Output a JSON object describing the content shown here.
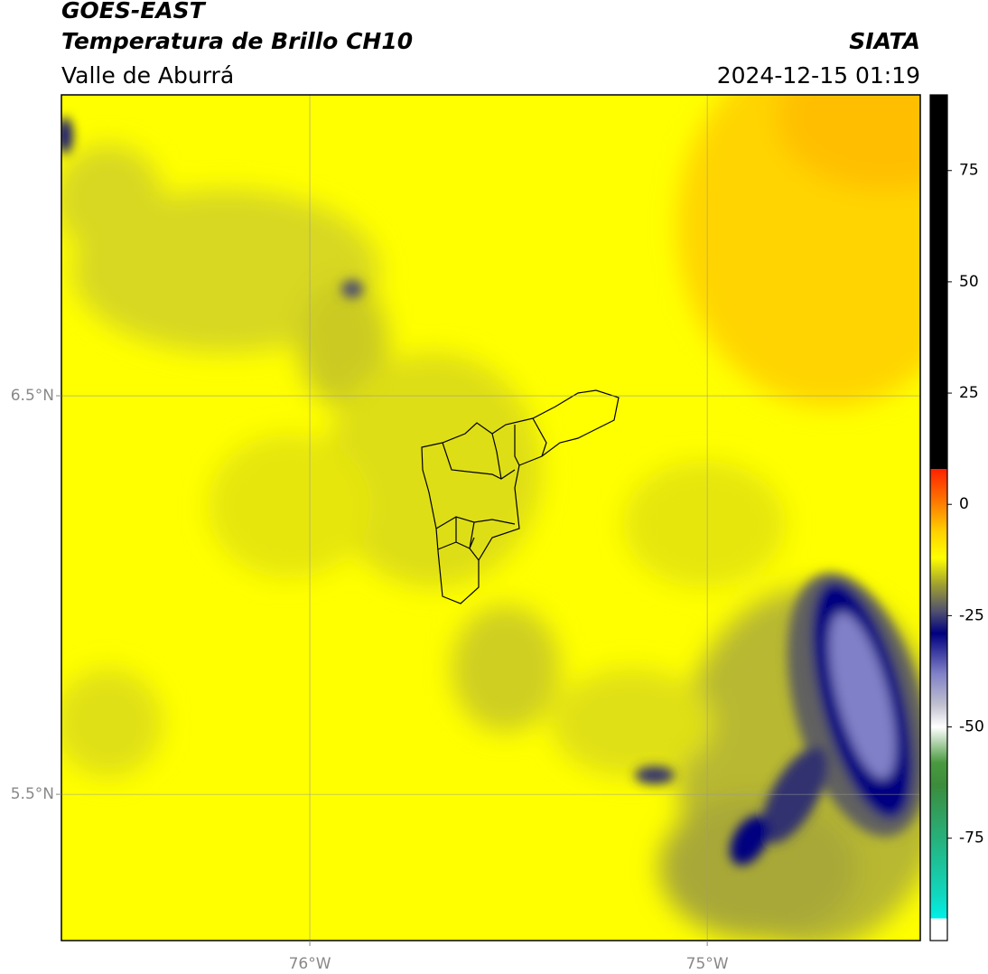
{
  "header": {
    "satellite": "GOES-EAST",
    "product": "Temperatura de Brillo CH10",
    "region": "Valle de Aburrá",
    "agency": "SIATA",
    "datetime": "2024-12-15 01:19"
  },
  "map": {
    "xlim": [
      -76.625,
      -74.464
    ],
    "ylim": [
      5.133,
      7.255
    ],
    "xticks": [
      {
        "value": -76,
        "label": "76°W"
      },
      {
        "value": -75,
        "label": "75°W"
      }
    ],
    "yticks": [
      {
        "value": 6.5,
        "label": "6.5°N"
      },
      {
        "value": 5.5,
        "label": "5.5°N"
      }
    ],
    "grid": true
  },
  "colorbar": {
    "lim": [
      -98,
      92
    ],
    "ticks": [
      75,
      50,
      25,
      0,
      -25,
      -50,
      -75
    ],
    "stops": [
      {
        "value": -98,
        "color": "#ffffff"
      },
      {
        "value": -93,
        "color": "#ffffff"
      },
      {
        "value": -93,
        "color": "#00f0e8"
      },
      {
        "value": -88,
        "color": "#10d8c0"
      },
      {
        "value": -63,
        "color": "#3c8c3c"
      },
      {
        "value": -58,
        "color": "#4a9a40"
      },
      {
        "value": -50,
        "color": "#ffffff"
      },
      {
        "value": -45,
        "color": "#c0c0d0"
      },
      {
        "value": -38,
        "color": "#8080c8"
      },
      {
        "value": -29,
        "color": "#000080"
      },
      {
        "value": -24,
        "color": "#505070"
      },
      {
        "value": -18,
        "color": "#a0a030"
      },
      {
        "value": -12,
        "color": "#ffff00"
      },
      {
        "value": -6,
        "color": "#ffd000"
      },
      {
        "value": 0,
        "color": "#ff8000"
      },
      {
        "value": 8,
        "color": "#ff2000"
      },
      {
        "value": 8,
        "color": "#000000"
      },
      {
        "value": 92,
        "color": "#000000"
      }
    ]
  }
}
